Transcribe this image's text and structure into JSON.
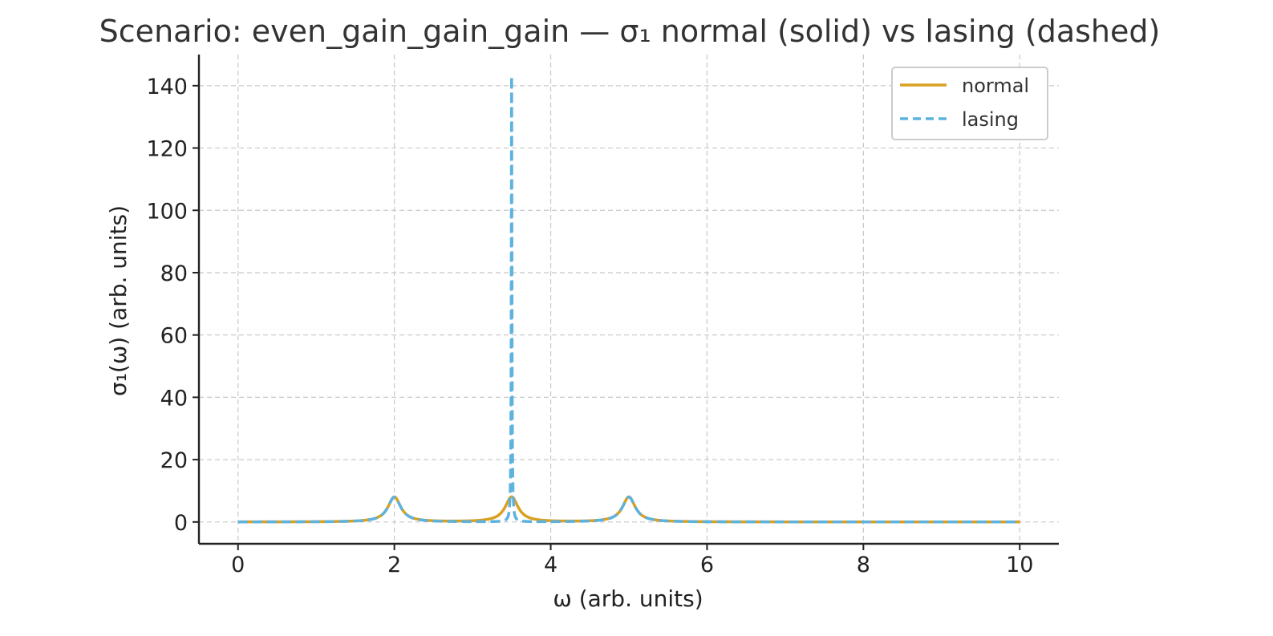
{
  "chart_data": {
    "type": "line",
    "title": "Scenario: even_gain_gain_gain — σ₁ normal (solid) vs lasing (dashed)",
    "xlabel": "ω (arb. units)",
    "ylabel": "σ₁(ω) (arb. units)",
    "xlim": [
      -0.5,
      10.5
    ],
    "ylim": [
      -7,
      150
    ],
    "xticks": [
      0,
      2,
      4,
      6,
      8,
      10
    ],
    "yticks": [
      0,
      20,
      40,
      60,
      80,
      100,
      120,
      140
    ],
    "grid": true,
    "legend_position": "top-right",
    "x_range": [
      0,
      10
    ],
    "series": [
      {
        "name": "normal",
        "style": "solid",
        "color": "#DAA020",
        "peaks": [
          {
            "center": 2.0,
            "height": 8.0,
            "width": 0.1
          },
          {
            "center": 3.5,
            "height": 8.0,
            "width": 0.1
          },
          {
            "center": 5.0,
            "height": 8.0,
            "width": 0.1
          }
        ]
      },
      {
        "name": "lasing",
        "style": "dashed",
        "color": "#5EB2DE",
        "peaks": [
          {
            "center": 2.0,
            "height": 8.0,
            "width": 0.1
          },
          {
            "center": 3.5,
            "height": 143.0,
            "width": 0.005
          },
          {
            "center": 5.0,
            "height": 8.0,
            "width": 0.1
          }
        ]
      }
    ]
  }
}
